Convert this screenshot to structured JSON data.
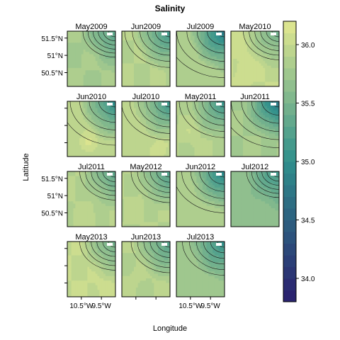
{
  "chart_data": {
    "type": "heatmap",
    "title": "Salinity",
    "xlabel": "Longitude",
    "ylabel": "Latitude",
    "x_ticks": [
      "10.5°W",
      "9.5°W"
    ],
    "y_ticks": [
      "51.5°N",
      "51°N",
      "50.5°N"
    ],
    "xlim": [
      -11.2,
      -8.8
    ],
    "ylim": [
      50.1,
      51.7
    ],
    "colorbar": {
      "ticks": [
        "36.0",
        "35.5",
        "35.0",
        "34.5",
        "34.0"
      ],
      "tick_values": [
        36.0,
        35.5,
        35.0,
        34.5,
        34.0
      ],
      "range": [
        33.8,
        36.2
      ],
      "level_step": 0.1,
      "color_low": "#2a1e6e",
      "color_mid": "#2f8f8c",
      "color_high": "#e2e88f"
    },
    "panels": [
      {
        "label": "May2009",
        "grad": 0.8,
        "base": 35.45,
        "bump": 0.05,
        "bx": 0.5,
        "by": 0.5
      },
      {
        "label": "Jun2009",
        "grad": 1.2,
        "base": 35.55,
        "bump": 0.0,
        "bx": 0.5,
        "by": 0.5
      },
      {
        "label": "Jul2009",
        "grad": 1.6,
        "base": 35.5,
        "bump": 0.0,
        "bx": 0.5,
        "by": 0.5
      },
      {
        "label": "May2010",
        "grad": 0.9,
        "base": 35.65,
        "bump": 0.1,
        "bx": 0.3,
        "by": 0.7
      },
      {
        "label": "Jun2010",
        "grad": 1.5,
        "base": 35.6,
        "bump": 0.15,
        "bx": 0.45,
        "by": 0.75
      },
      {
        "label": "Jul2010",
        "grad": 1.3,
        "base": 35.6,
        "bump": 0.12,
        "bx": 0.8,
        "by": 0.85
      },
      {
        "label": "May2011",
        "grad": 1.2,
        "base": 35.55,
        "bump": 0.08,
        "bx": 0.3,
        "by": 0.55
      },
      {
        "label": "Jun2011",
        "grad": 1.6,
        "base": 35.45,
        "bump": 0.0,
        "bx": 0.5,
        "by": 0.5
      },
      {
        "label": "Jul2011",
        "grad": 0.9,
        "base": 35.55,
        "bump": 0.05,
        "bx": 0.4,
        "by": 0.8
      },
      {
        "label": "May2012",
        "grad": 1.0,
        "base": 35.55,
        "bump": 0.05,
        "bx": 0.3,
        "by": 0.7
      },
      {
        "label": "Jun2012",
        "grad": 1.4,
        "base": 35.5,
        "bump": 0.0,
        "bx": 0.5,
        "by": 0.5
      },
      {
        "label": "Jul2012",
        "grad": 0.8,
        "base": 35.3,
        "bump": 0.0,
        "bx": 0.5,
        "by": 0.5
      },
      {
        "label": "May2013",
        "grad": 0.9,
        "base": 35.65,
        "bump": 0.05,
        "bx": 0.75,
        "by": 0.85
      },
      {
        "label": "Jun2013",
        "grad": 1.0,
        "base": 35.55,
        "bump": 0.03,
        "bx": 0.35,
        "by": 0.6
      },
      {
        "label": "Jul2013",
        "grad": 1.1,
        "base": 35.4,
        "bump": 0.0,
        "bx": 0.5,
        "by": 0.5
      }
    ]
  }
}
